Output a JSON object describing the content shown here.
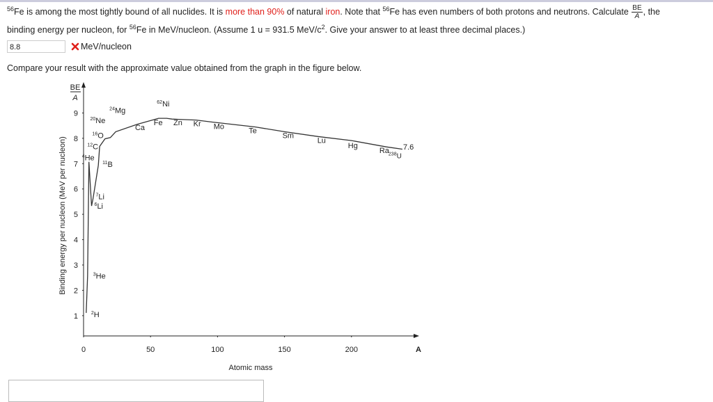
{
  "question": {
    "line1": [
      {
        "text": "56",
        "sup": true
      },
      {
        "text": "Fe is among the most tightly bound of all nuclides. It is "
      },
      {
        "text": "more than 90%",
        "red": true
      },
      {
        "text": " of natural "
      },
      {
        "text": "iron",
        "red": true
      },
      {
        "text": ". Note that "
      },
      {
        "text": "56",
        "sup": true
      },
      {
        "text": "Fe has even numbers of both protons and neutrons. Calculate "
      }
    ],
    "fraction": {
      "numerator": "BE",
      "denominator": "A"
    },
    "line1_end": ", the",
    "line2": [
      {
        "text": "binding energy per nucleon, for "
      },
      {
        "text": "56",
        "sup": true
      },
      {
        "text": "Fe in MeV/nucleon. (Assume 1 u = 931.5 MeV/c"
      },
      {
        "text": "2",
        "sup": true
      },
      {
        "text": ". Give your answer to at least three decimal places.)"
      }
    ]
  },
  "answer": {
    "value": "8.8",
    "status": "incorrect",
    "unit": "MeV/nucleon"
  },
  "compare_text": "Compare your result with the approximate value obtained from the graph in the figure below.",
  "figure": {
    "y_axis_label": "Binding energy per nucleon (MeV per nucleon)",
    "y_axis_symbol": {
      "numerator": "BE",
      "denominator": "A"
    },
    "x_axis_label": "Atomic mass",
    "x_axis_symbol": "A",
    "xlim": [
      0,
      250
    ],
    "ylim": [
      0.2,
      10
    ],
    "xticks": [
      0,
      50,
      100,
      150,
      200
    ],
    "yticks": [
      1,
      2,
      3,
      4,
      5,
      6,
      7,
      8,
      9
    ],
    "annotation": "7.6",
    "nuclides": [
      {
        "mass": "2",
        "symbol": "H",
        "A": 2,
        "be": 1.11
      },
      {
        "mass": "3",
        "symbol": "He",
        "A": 3,
        "be": 2.57
      },
      {
        "mass": "4",
        "symbol": "He",
        "A": 4,
        "be": 7.07
      },
      {
        "mass": "6",
        "symbol": "Li",
        "A": 6,
        "be": 5.33
      },
      {
        "mass": "7",
        "symbol": "Li",
        "A": 7,
        "be": 5.6
      },
      {
        "mass": "11",
        "symbol": "B",
        "A": 11,
        "be": 6.93
      },
      {
        "mass": "12",
        "symbol": "C",
        "A": 12,
        "be": 7.68
      },
      {
        "mass": "16",
        "symbol": "O",
        "A": 16,
        "be": 7.98
      },
      {
        "mass": "20",
        "symbol": "Ne",
        "A": 20,
        "be": 8.03
      },
      {
        "mass": "24",
        "symbol": "Mg",
        "A": 24,
        "be": 8.26
      },
      {
        "symbol": "Ca",
        "A": 40,
        "be": 8.55
      },
      {
        "symbol": "Fe",
        "A": 56,
        "be": 8.79
      },
      {
        "mass": "62",
        "symbol": "Ni",
        "A": 62,
        "be": 8.79
      },
      {
        "symbol": "Zn",
        "A": 66,
        "be": 8.76
      },
      {
        "symbol": "Kr",
        "A": 84,
        "be": 8.72
      },
      {
        "symbol": "Mo",
        "A": 96,
        "be": 8.64
      },
      {
        "symbol": "Te",
        "A": 128,
        "be": 8.45
      },
      {
        "symbol": "Sm",
        "A": 150,
        "be": 8.26
      },
      {
        "symbol": "Lu",
        "A": 175,
        "be": 8.07
      },
      {
        "symbol": "Hg",
        "A": 200,
        "be": 7.91
      },
      {
        "symbol": "Ra",
        "A": 226,
        "be": 7.66
      },
      {
        "mass": "238",
        "symbol": "U",
        "A": 238,
        "be": 7.57
      }
    ]
  }
}
